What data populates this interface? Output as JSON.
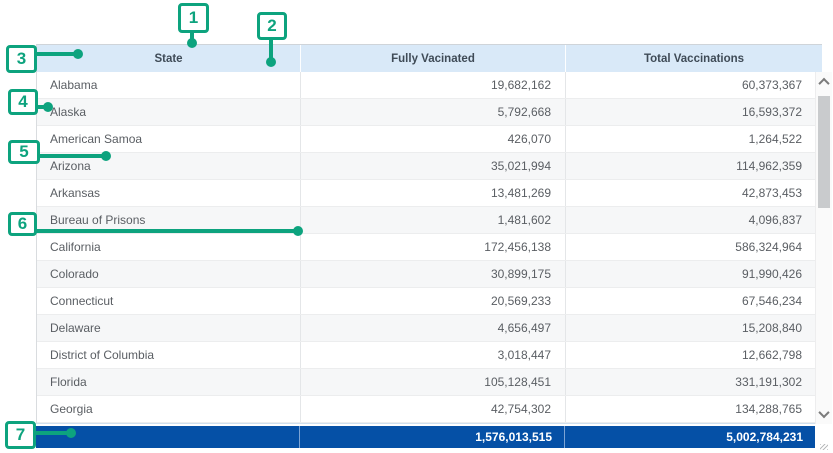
{
  "colors": {
    "accent_green": "#0da37e",
    "header_bg": "#d9e9f8",
    "total_row_bg": "#0550a6"
  },
  "table": {
    "columns": [
      "State",
      "Fully Vacinated",
      "Total Vaccinations"
    ],
    "rows": [
      [
        "Alabama",
        "19,682,162",
        "60,373,367"
      ],
      [
        "Alaska",
        "5,792,668",
        "16,593,372"
      ],
      [
        "American Samoa",
        "426,070",
        "1,264,522"
      ],
      [
        "Arizona",
        "35,021,994",
        "114,962,359"
      ],
      [
        "Arkansas",
        "13,481,269",
        "42,873,453"
      ],
      [
        "Bureau of Prisons",
        "1,481,602",
        "4,096,837"
      ],
      [
        "California",
        "172,456,138",
        "586,324,964"
      ],
      [
        "Colorado",
        "30,899,175",
        "91,990,426"
      ],
      [
        "Connecticut",
        "20,569,233",
        "67,546,234"
      ],
      [
        "Delaware",
        "4,656,497",
        "15,208,840"
      ],
      [
        "District of Columbia",
        "3,018,447",
        "12,662,798"
      ],
      [
        "Florida",
        "105,128,451",
        "331,191,302"
      ],
      [
        "Georgia",
        "42,754,302",
        "134,288,765"
      ]
    ],
    "totals": [
      "",
      "1,576,013,515",
      "5,002,784,231"
    ]
  },
  "callouts": [
    {
      "label": "1"
    },
    {
      "label": "2"
    },
    {
      "label": "3"
    },
    {
      "label": "4"
    },
    {
      "label": "5"
    },
    {
      "label": "6"
    },
    {
      "label": "7"
    }
  ]
}
